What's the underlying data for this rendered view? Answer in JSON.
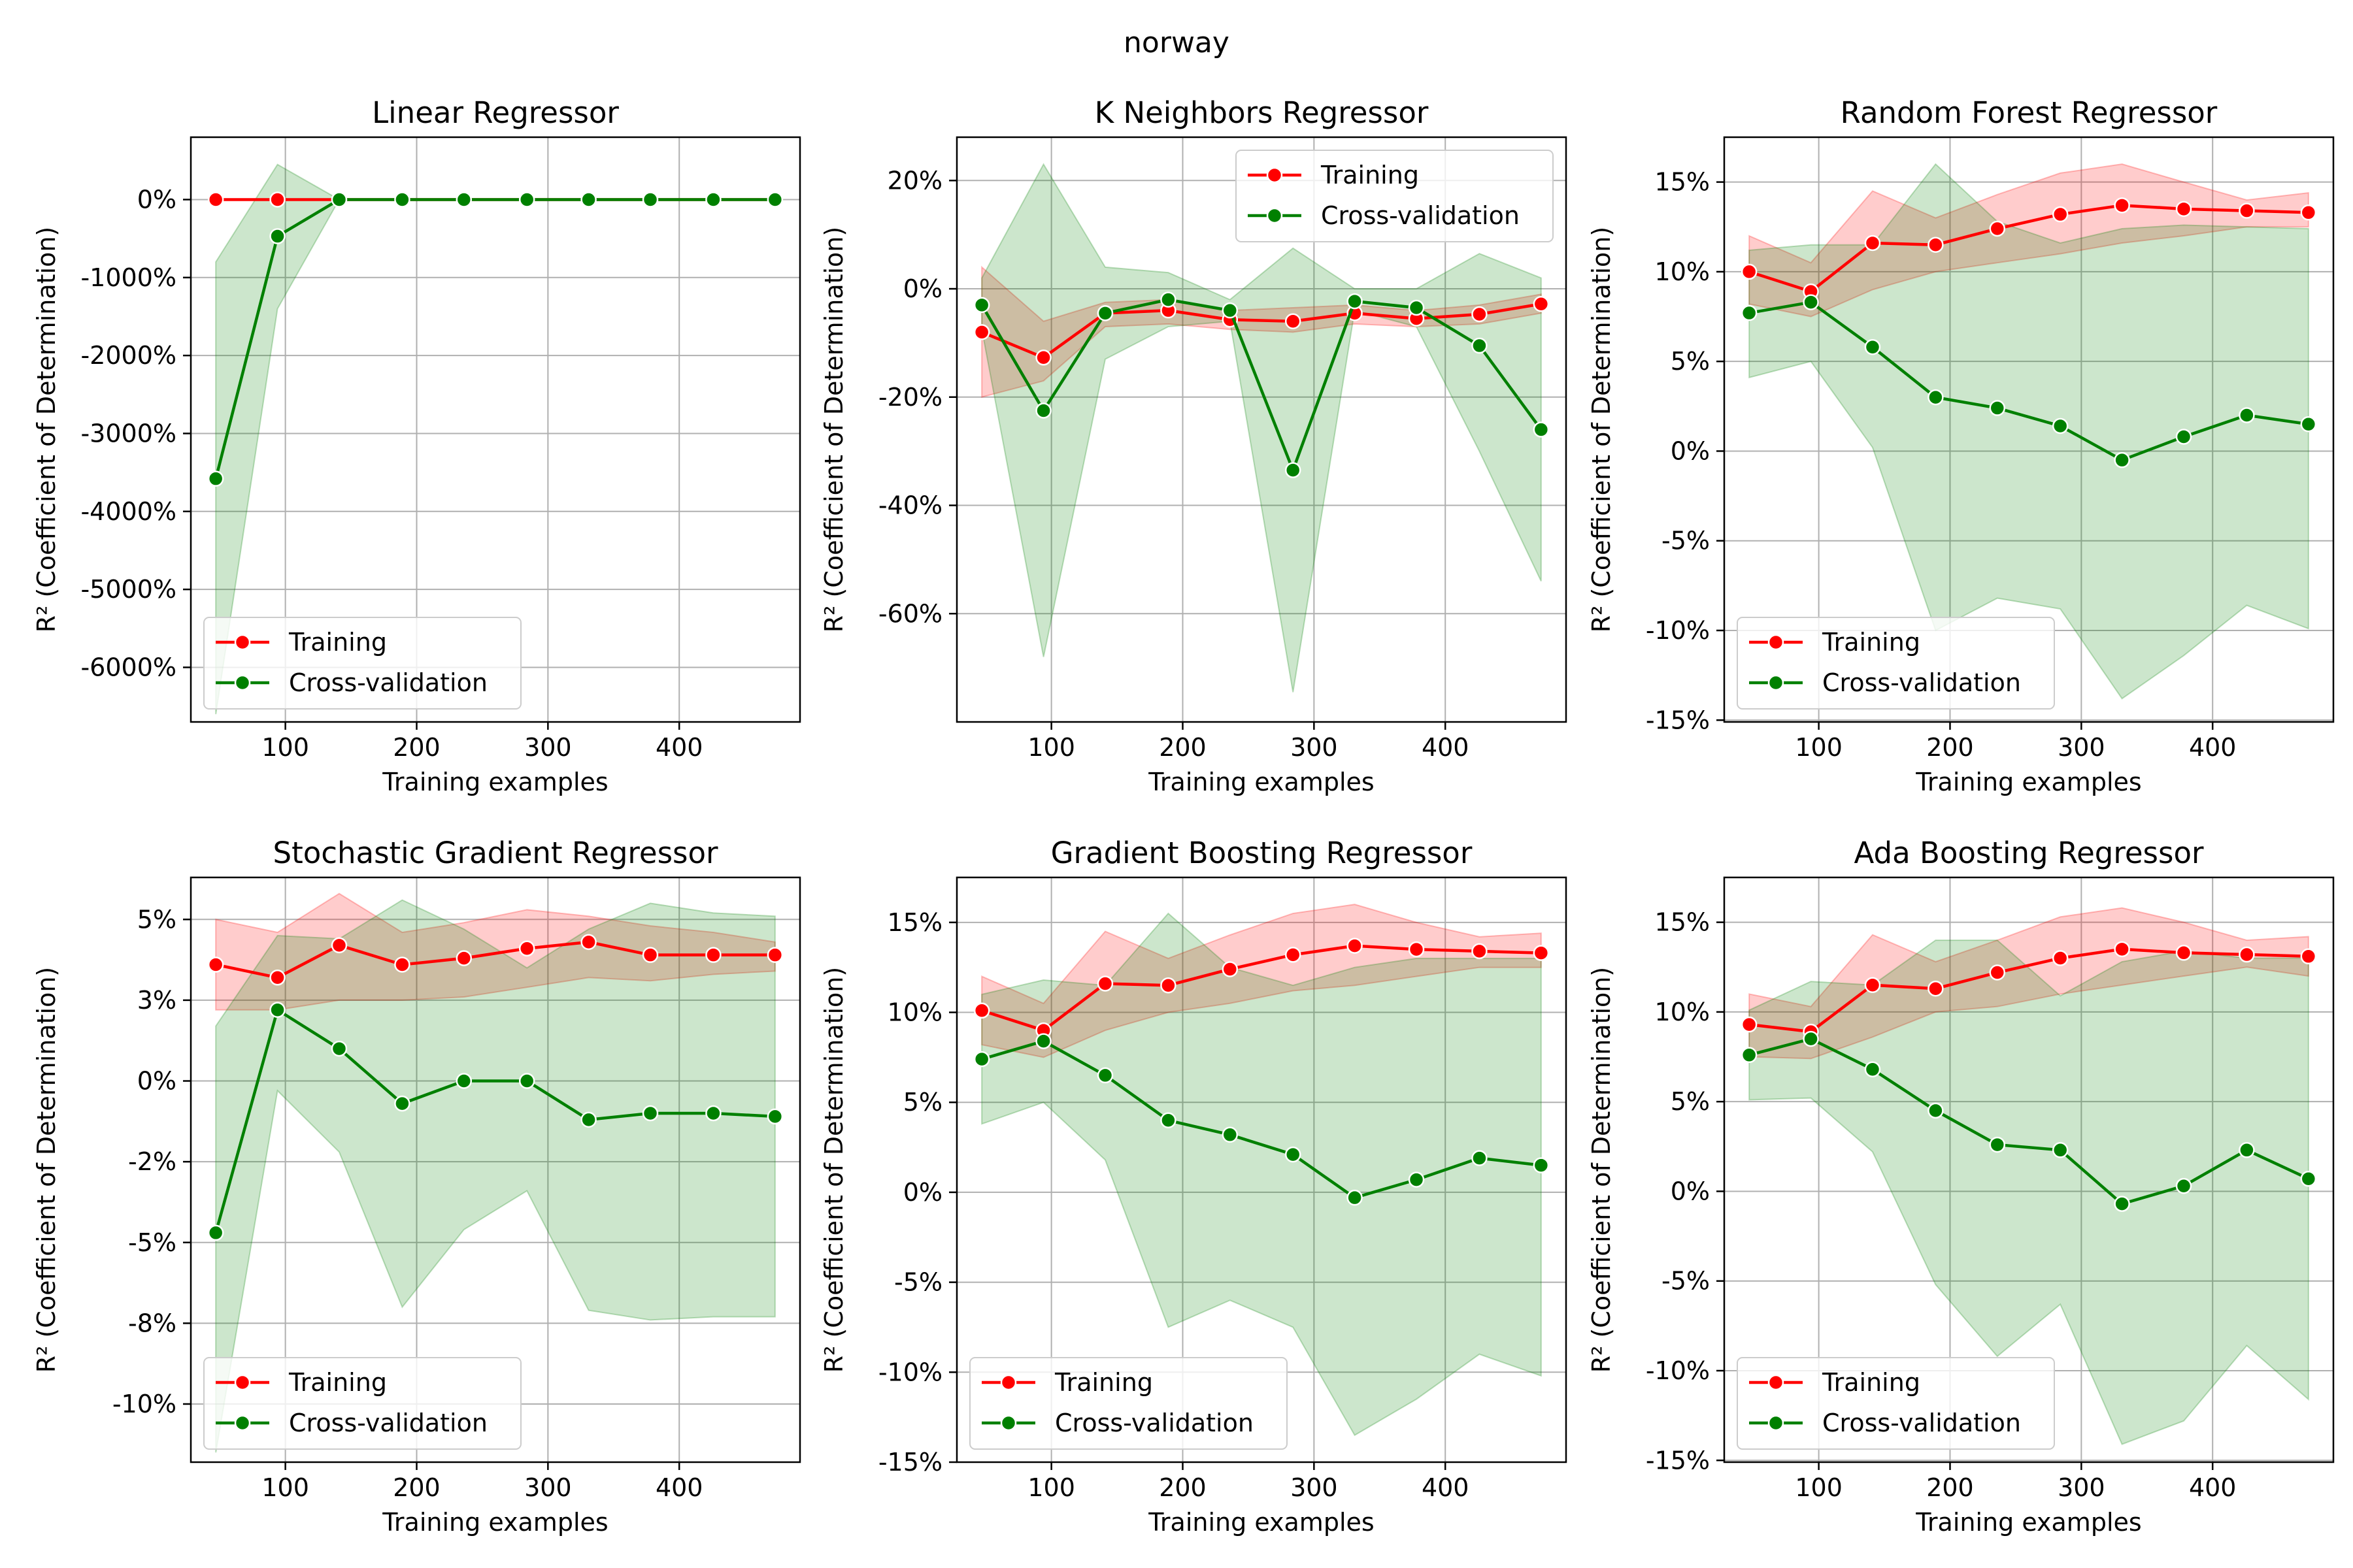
{
  "figure_title": "norway",
  "legend": {
    "training": "Training",
    "cv": "Cross-validation"
  },
  "colors": {
    "training": "#ff0000",
    "cv": "#008000",
    "training_band": "#ff0000",
    "cv_band": "#008000"
  },
  "chart_data": [
    {
      "type": "line",
      "title": "Linear Regressor",
      "xlabel": "Training examples",
      "ylabel": "R² (Coefficient of Determination)",
      "xticks": [
        100,
        200,
        300,
        400
      ],
      "yticks": [
        0,
        -1000,
        -2000,
        -3000,
        -4000,
        -5000,
        -6000
      ],
      "ytick_labels": [
        "0%",
        "-1000%",
        "-2000%",
        "-3000%",
        "-4000%",
        "-5000%",
        "-6000%"
      ],
      "ylim": [
        -6700,
        800
      ],
      "xlim": [
        28,
        492
      ],
      "grid": true,
      "legend_position": "lower left",
      "x": [
        47,
        94,
        141,
        189,
        236,
        284,
        331,
        378,
        426,
        473
      ],
      "series": [
        {
          "name": "Training",
          "values": [
            0,
            0,
            0,
            0,
            0,
            0,
            0,
            0,
            0,
            0
          ],
          "lower": [
            0,
            0,
            0,
            0,
            0,
            0,
            0,
            0,
            0,
            0
          ],
          "upper": [
            0,
            0,
            0,
            0,
            0,
            0,
            0,
            0,
            0,
            0
          ]
        },
        {
          "name": "Cross-validation",
          "values": [
            -3580,
            -470,
            0,
            0,
            0,
            0,
            0,
            0,
            0,
            0
          ],
          "lower": [
            -6600,
            -1400,
            0,
            0,
            0,
            0,
            0,
            0,
            0,
            0
          ],
          "upper": [
            -800,
            450,
            0,
            0,
            0,
            0,
            0,
            0,
            0,
            0
          ]
        }
      ]
    },
    {
      "type": "line",
      "title": "K Neighbors Regressor",
      "xlabel": "Training examples",
      "ylabel": "R² (Coefficient of Determination)",
      "xticks": [
        100,
        200,
        300,
        400
      ],
      "yticks": [
        20,
        0,
        -20,
        -40,
        -60
      ],
      "ytick_labels": [
        "20%",
        "0%",
        "-20%",
        "-40%",
        "-60%"
      ],
      "ylim": [
        -80,
        28
      ],
      "xlim": [
        28,
        492
      ],
      "grid": true,
      "legend_position": "upper right",
      "x": [
        47,
        94,
        141,
        189,
        236,
        284,
        331,
        378,
        426,
        473
      ],
      "series": [
        {
          "name": "Training",
          "values": [
            -8,
            -12.7,
            -4.5,
            -4,
            -5.7,
            -6,
            -4.5,
            -5.5,
            -4.7,
            -2.8
          ],
          "lower": [
            -20,
            -17,
            -7,
            -6.5,
            -7.5,
            -8,
            -6.5,
            -7,
            -6.5,
            -4.5
          ],
          "upper": [
            4,
            -6,
            -2.5,
            -2,
            -4,
            -3.5,
            -3,
            -4,
            -3,
            -1
          ]
        },
        {
          "name": "Cross-validation",
          "values": [
            -3,
            -22.5,
            -4.5,
            -2,
            -4,
            -33.5,
            -2.3,
            -3.5,
            -10.5,
            -26
          ],
          "lower": [
            -7.5,
            -68,
            -13,
            -7,
            -6,
            -74.5,
            -4,
            -7,
            -30,
            -54
          ],
          "upper": [
            2,
            23,
            4,
            3,
            -2,
            7.5,
            0,
            0,
            6.5,
            2
          ]
        }
      ]
    },
    {
      "type": "line",
      "title": "Random Forest Regressor",
      "xlabel": "Training examples",
      "ylabel": "R² (Coefficient of Determination)",
      "xticks": [
        100,
        200,
        300,
        400
      ],
      "yticks": [
        15,
        10,
        5,
        0,
        -5,
        -10,
        -15
      ],
      "ytick_labels": [
        "15%",
        "10%",
        "5%",
        "0%",
        "-5%",
        "-10%",
        "-15%"
      ],
      "ylim": [
        -15.1,
        17.5
      ],
      "xlim": [
        28,
        492
      ],
      "grid": true,
      "legend_position": "lower left",
      "x": [
        47,
        94,
        141,
        189,
        236,
        284,
        331,
        378,
        426,
        473
      ],
      "series": [
        {
          "name": "Training",
          "values": [
            10,
            8.9,
            11.6,
            11.5,
            12.4,
            13.2,
            13.7,
            13.5,
            13.4,
            13.3
          ],
          "lower": [
            8.2,
            7.5,
            9,
            10,
            10.5,
            11,
            11.6,
            12,
            12.5,
            12.5
          ],
          "upper": [
            12,
            10.5,
            14.5,
            13,
            14.3,
            15.5,
            16,
            15,
            14,
            14.4
          ]
        },
        {
          "name": "Cross-validation",
          "values": [
            7.7,
            8.3,
            5.8,
            3,
            2.4,
            1.4,
            -0.5,
            0.8,
            2,
            1.5
          ],
          "lower": [
            4.1,
            5,
            0.2,
            -10,
            -8.2,
            -8.8,
            -13.8,
            -11.4,
            -8.6,
            -9.9
          ],
          "upper": [
            11.2,
            11.5,
            11.5,
            16,
            12.8,
            11.6,
            12.4,
            12.6,
            12.5,
            12.4
          ]
        }
      ]
    },
    {
      "type": "line",
      "title": "Stochastic Gradient Regressor",
      "xlabel": "Training examples",
      "ylabel": "R² (Coefficient of Determination)",
      "xticks": [
        100,
        200,
        300,
        400
      ],
      "yticks": [
        5,
        2.5,
        0,
        -2.5,
        -5,
        -7.5,
        -10
      ],
      "ytick_labels": [
        "5%",
        "3%",
        "0%",
        "-2%",
        "-5%",
        "-8%",
        "-10%"
      ],
      "ylim": [
        -11.8,
        6.3
      ],
      "xlim": [
        28,
        492
      ],
      "grid": true,
      "legend_position": "lower left",
      "x": [
        47,
        94,
        141,
        189,
        236,
        284,
        331,
        378,
        426,
        473
      ],
      "series": [
        {
          "name": "Training",
          "values": [
            3.6,
            3.2,
            4.2,
            3.6,
            3.8,
            4.1,
            4.3,
            3.9,
            3.9,
            3.9
          ],
          "lower": [
            2.2,
            2.2,
            2.5,
            2.5,
            2.6,
            2.9,
            3.2,
            3.1,
            3.3,
            3.4
          ],
          "upper": [
            5,
            4.6,
            5.8,
            4.6,
            4.9,
            5.3,
            5.1,
            4.8,
            4.6,
            4.3
          ]
        },
        {
          "name": "Cross-validation",
          "values": [
            -4.7,
            2.2,
            1,
            -0.7,
            0,
            0,
            -1.2,
            -1,
            -1,
            -1.1
          ],
          "lower": [
            -11.5,
            -0.3,
            -2.2,
            -7,
            -4.6,
            -3.4,
            -7.1,
            -7.4,
            -7.3,
            -7.3
          ],
          "upper": [
            1.7,
            4.5,
            4.4,
            5.6,
            4.7,
            3.5,
            4.7,
            5.5,
            5.2,
            5.1
          ]
        }
      ]
    },
    {
      "type": "line",
      "title": "Gradient Boosting Regressor",
      "xlabel": "Training examples",
      "ylabel": "R² (Coefficient of Determination)",
      "xticks": [
        100,
        200,
        300,
        400
      ],
      "yticks": [
        15,
        10,
        5,
        0,
        -5,
        -10,
        -15
      ],
      "ytick_labels": [
        "15%",
        "10%",
        "5%",
        "0%",
        "-5%",
        "-10%",
        "-15%"
      ],
      "ylim": [
        -15,
        17.5
      ],
      "xlim": [
        28,
        492
      ],
      "grid": true,
      "legend_position": "lower left",
      "x": [
        47,
        94,
        141,
        189,
        236,
        284,
        331,
        378,
        426,
        473
      ],
      "series": [
        {
          "name": "Training",
          "values": [
            10.1,
            9,
            11.6,
            11.5,
            12.4,
            13.2,
            13.7,
            13.5,
            13.4,
            13.3
          ],
          "lower": [
            8.2,
            7.5,
            9,
            10,
            10.5,
            11.2,
            11.5,
            12,
            12.5,
            12.5
          ],
          "upper": [
            12,
            10.5,
            14.5,
            13,
            14.3,
            15.5,
            16,
            15,
            14.2,
            14.4
          ]
        },
        {
          "name": "Cross-validation",
          "values": [
            7.4,
            8.4,
            6.5,
            4,
            3.2,
            2.1,
            -0.3,
            0.7,
            1.9,
            1.5
          ],
          "lower": [
            3.8,
            5,
            1.8,
            -7.5,
            -6,
            -7.5,
            -13.5,
            -11.5,
            -9,
            -10.2
          ],
          "upper": [
            11,
            11.8,
            11.5,
            15.5,
            12.5,
            11.5,
            12.5,
            13,
            13,
            13
          ]
        }
      ]
    },
    {
      "type": "line",
      "title": "Ada Boosting Regressor",
      "xlabel": "Training examples",
      "ylabel": "R² (Coefficient of Determination)",
      "xticks": [
        100,
        200,
        300,
        400
      ],
      "yticks": [
        15,
        10,
        5,
        0,
        -5,
        -10,
        -15
      ],
      "ytick_labels": [
        "15%",
        "10%",
        "5%",
        "0%",
        "-5%",
        "-10%",
        "-15%"
      ],
      "ylim": [
        -15.1,
        17.5
      ],
      "xlim": [
        28,
        492
      ],
      "grid": true,
      "legend_position": "lower left",
      "x": [
        47,
        94,
        141,
        189,
        236,
        284,
        331,
        378,
        426,
        473
      ],
      "series": [
        {
          "name": "Training",
          "values": [
            9.3,
            8.9,
            11.5,
            11.3,
            12.2,
            13,
            13.5,
            13.3,
            13.2,
            13.1
          ],
          "lower": [
            7.5,
            7.4,
            8.6,
            10,
            10.3,
            11,
            11.5,
            12,
            12.5,
            12
          ],
          "upper": [
            11,
            10.3,
            14.3,
            12.8,
            14,
            15.3,
            15.8,
            15,
            14,
            14.2
          ]
        },
        {
          "name": "Cross-validation",
          "values": [
            7.6,
            8.5,
            6.8,
            4.5,
            2.6,
            2.3,
            -0.7,
            0.3,
            2.3,
            0.7
          ],
          "lower": [
            5.1,
            5.2,
            2.2,
            -5.2,
            -9.2,
            -6.3,
            -14.1,
            -12.8,
            -8.6,
            -11.6
          ],
          "upper": [
            10.1,
            11.7,
            11.5,
            14,
            14,
            10.9,
            12.8,
            13.4,
            13,
            13
          ]
        }
      ]
    }
  ]
}
